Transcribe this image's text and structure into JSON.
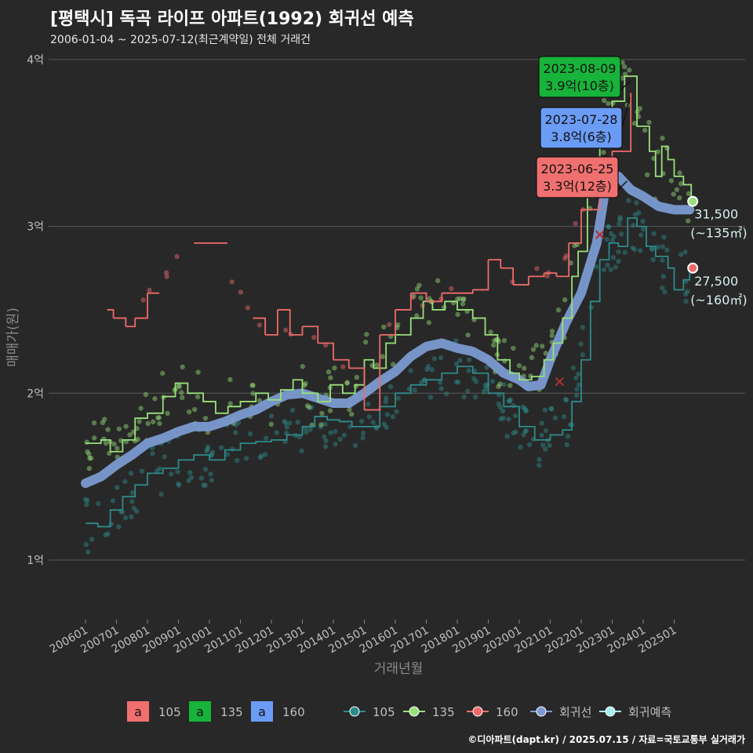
{
  "title": "[평택시] 독곡 라이프 아파트(1992) 회귀선 예측",
  "subtitle": "2006-01-04 ~ 2025-07-12(최근계약일) 전체 거래건",
  "credit": "©디아파트(dapt.kr) / 2025.07.15 / 자료=국토교통부 실거래가",
  "colors": {
    "s105": "#2e8b8b",
    "s135": "#98e07a",
    "s160": "#f06a6a",
    "reg": "#7a9ad0",
    "pred": "#a8f0f0",
    "box135": "#17b33a",
    "box160": "#6b9cf5",
    "box105": "#f07070"
  },
  "chart_data": {
    "type": "line",
    "xlabel": "거래년월",
    "ylabel": "매매가(원)",
    "ylim": [
      0.7,
      4.1
    ],
    "yticks": [
      {
        "v": 1,
        "label": "1억"
      },
      {
        "v": 2,
        "label": "2억"
      },
      {
        "v": 3,
        "label": "3억"
      },
      {
        "v": 4,
        "label": "4억"
      }
    ],
    "xticks": [
      "200601",
      "200701",
      "200801",
      "200901",
      "201001",
      "201101",
      "201201",
      "201301",
      "201401",
      "201501",
      "201601",
      "201701",
      "201801",
      "201901",
      "202001",
      "202101",
      "202201",
      "202301",
      "202401",
      "202501"
    ],
    "series": [
      {
        "name": "105",
        "kind": "trend",
        "points": [
          [
            2006.0,
            1.22
          ],
          [
            2006.4,
            1.2
          ],
          [
            2006.8,
            1.3
          ],
          [
            2007.2,
            1.38
          ],
          [
            2007.6,
            1.45
          ],
          [
            2008.0,
            1.52
          ],
          [
            2008.5,
            1.55
          ],
          [
            2009.0,
            1.6
          ],
          [
            2009.5,
            1.63
          ],
          [
            2010.0,
            1.6
          ],
          [
            2010.5,
            1.66
          ],
          [
            2011.0,
            1.7
          ],
          [
            2011.5,
            1.71
          ],
          [
            2012.0,
            1.72
          ],
          [
            2012.5,
            1.75
          ],
          [
            2013.0,
            1.8
          ],
          [
            2013.4,
            1.86
          ],
          [
            2013.8,
            1.84
          ],
          [
            2014.2,
            1.83
          ],
          [
            2014.6,
            1.8
          ],
          [
            2015.0,
            1.8
          ],
          [
            2015.5,
            1.92
          ],
          [
            2016.0,
            2.0
          ],
          [
            2016.5,
            2.05
          ],
          [
            2017.0,
            2.08
          ],
          [
            2017.5,
            2.12
          ],
          [
            2018.0,
            2.16
          ],
          [
            2018.5,
            2.12
          ],
          [
            2019.0,
            2.0
          ],
          [
            2019.5,
            1.92
          ],
          [
            2020.0,
            1.8
          ],
          [
            2020.5,
            1.72
          ],
          [
            2021.0,
            1.75
          ],
          [
            2021.4,
            1.78
          ],
          [
            2021.7,
            1.95
          ],
          [
            2022.0,
            2.2
          ],
          [
            2022.3,
            2.55
          ],
          [
            2022.6,
            2.8
          ],
          [
            2022.9,
            2.9
          ],
          [
            2023.2,
            2.88
          ],
          [
            2023.5,
            3.05
          ],
          [
            2023.8,
            3.0
          ],
          [
            2024.1,
            2.88
          ],
          [
            2024.4,
            2.82
          ],
          [
            2024.8,
            2.75
          ],
          [
            2025.0,
            2.62
          ],
          [
            2025.3,
            2.68
          ],
          [
            2025.5,
            2.72
          ]
        ]
      },
      {
        "name": "135",
        "kind": "trend",
        "points": [
          [
            2006.0,
            1.7
          ],
          [
            2006.5,
            1.72
          ],
          [
            2006.8,
            1.65
          ],
          [
            2007.2,
            1.72
          ],
          [
            2007.6,
            1.85
          ],
          [
            2008.0,
            1.88
          ],
          [
            2008.5,
            1.98
          ],
          [
            2008.9,
            2.06
          ],
          [
            2009.3,
            2.0
          ],
          [
            2009.8,
            1.95
          ],
          [
            2010.2,
            1.88
          ],
          [
            2010.6,
            1.92
          ],
          [
            2011.0,
            1.95
          ],
          [
            2011.5,
            2.0
          ],
          [
            2011.9,
            1.96
          ],
          [
            2012.3,
            2.02
          ],
          [
            2012.7,
            2.08
          ],
          [
            2013.0,
            2.0
          ],
          [
            2013.5,
            1.95
          ],
          [
            2013.9,
            2.05
          ],
          [
            2014.3,
            2.0
          ],
          [
            2014.7,
            2.05
          ],
          [
            2015.0,
            2.2
          ],
          [
            2015.3,
            2.15
          ],
          [
            2015.7,
            2.3
          ],
          [
            2016.0,
            2.35
          ],
          [
            2016.5,
            2.45
          ],
          [
            2016.9,
            2.55
          ],
          [
            2017.2,
            2.5
          ],
          [
            2017.6,
            2.55
          ],
          [
            2018.0,
            2.5
          ],
          [
            2018.5,
            2.45
          ],
          [
            2018.9,
            2.35
          ],
          [
            2019.3,
            2.2
          ],
          [
            2019.7,
            2.12
          ],
          [
            2020.0,
            2.08
          ],
          [
            2020.4,
            2.1
          ],
          [
            2020.8,
            2.2
          ],
          [
            2021.1,
            2.3
          ],
          [
            2021.4,
            2.45
          ],
          [
            2021.7,
            2.7
          ],
          [
            2021.9,
            2.85
          ],
          [
            2022.2,
            3.2
          ],
          [
            2022.6,
            3.55
          ],
          [
            2023.0,
            3.75
          ],
          [
            2023.4,
            3.9
          ],
          [
            2023.8,
            3.6
          ],
          [
            2024.2,
            3.45
          ],
          [
            2024.4,
            3.3
          ],
          [
            2024.6,
            3.48
          ],
          [
            2024.8,
            3.4
          ],
          [
            2025.0,
            3.3
          ],
          [
            2025.3,
            3.25
          ],
          [
            2025.55,
            3.15
          ]
        ]
      },
      {
        "name": "160",
        "kind": "trend",
        "points": [
          [
            2006.7,
            2.5
          ],
          [
            2006.9,
            2.45
          ],
          [
            2007.3,
            2.4
          ],
          [
            2007.6,
            2.45
          ],
          [
            2008.0,
            2.6
          ],
          [
            2009.5,
            2.9
          ],
          [
            2010.2,
            2.9
          ],
          [
            2011.4,
            2.45
          ],
          [
            2011.8,
            2.35
          ],
          [
            2012.2,
            2.5
          ],
          [
            2012.6,
            2.35
          ],
          [
            2013.0,
            2.4
          ],
          [
            2013.5,
            2.3
          ],
          [
            2014.0,
            2.2
          ],
          [
            2014.5,
            2.15
          ],
          [
            2015.0,
            1.9
          ],
          [
            2015.5,
            2.35
          ],
          [
            2016.0,
            2.5
          ],
          [
            2016.5,
            2.6
          ],
          [
            2017.0,
            2.55
          ],
          [
            2017.5,
            2.6
          ],
          [
            2018.0,
            2.6
          ],
          [
            2018.5,
            2.62
          ],
          [
            2019.0,
            2.8
          ],
          [
            2019.4,
            2.75
          ],
          [
            2019.8,
            2.65
          ],
          [
            2020.3,
            2.7
          ],
          [
            2020.8,
            2.72
          ],
          [
            2021.2,
            2.7
          ],
          [
            2021.6,
            2.9
          ],
          [
            2022.0,
            3.1
          ],
          [
            2022.6,
            3.3
          ],
          [
            2023.0,
            3.45
          ],
          [
            2023.6,
            3.8
          ]
        ]
      },
      {
        "name": "회귀선",
        "kind": "regression",
        "points": [
          [
            2006.0,
            1.46
          ],
          [
            2006.5,
            1.5
          ],
          [
            2007.0,
            1.57
          ],
          [
            2007.5,
            1.63
          ],
          [
            2008.0,
            1.7
          ],
          [
            2008.5,
            1.73
          ],
          [
            2009.0,
            1.77
          ],
          [
            2009.5,
            1.8
          ],
          [
            2010.0,
            1.8
          ],
          [
            2010.5,
            1.83
          ],
          [
            2011.0,
            1.87
          ],
          [
            2011.5,
            1.9
          ],
          [
            2012.0,
            1.95
          ],
          [
            2012.5,
            1.99
          ],
          [
            2013.0,
            2.0
          ],
          [
            2013.5,
            1.97
          ],
          [
            2014.0,
            1.94
          ],
          [
            2014.5,
            1.94
          ],
          [
            2015.0,
            2.0
          ],
          [
            2015.5,
            2.07
          ],
          [
            2016.0,
            2.13
          ],
          [
            2016.5,
            2.22
          ],
          [
            2017.0,
            2.28
          ],
          [
            2017.5,
            2.3
          ],
          [
            2018.0,
            2.27
          ],
          [
            2018.5,
            2.25
          ],
          [
            2019.0,
            2.2
          ],
          [
            2019.5,
            2.12
          ],
          [
            2020.0,
            2.08
          ],
          [
            2020.3,
            2.04
          ],
          [
            2020.7,
            2.05
          ],
          [
            2021.0,
            2.2
          ],
          [
            2021.5,
            2.42
          ],
          [
            2022.0,
            2.6
          ],
          [
            2022.5,
            2.9
          ],
          [
            2022.8,
            3.25
          ],
          [
            2023.2,
            3.3
          ],
          [
            2023.6,
            3.22
          ],
          [
            2024.0,
            3.18
          ],
          [
            2024.5,
            3.12
          ],
          [
            2025.0,
            3.1
          ],
          [
            2025.5,
            3.1
          ]
        ]
      }
    ],
    "endpoints": [
      {
        "series": "135",
        "x": 2025.6,
        "y": 3.15,
        "label1": "31,500",
        "label2": "(~135㎡)"
      },
      {
        "series": "160",
        "x": 2025.6,
        "y": 2.75,
        "label1": "27,500",
        "label2": "(~160㎡)"
      }
    ],
    "annotations": [
      {
        "series": "135",
        "date": "2023-08-09",
        "price": "3.9억(10층)",
        "x": 2023.6,
        "y": 3.9
      },
      {
        "series": "160",
        "date": "2023-07-28",
        "price": "3.8억(6층)",
        "x": 2023.57,
        "y": 3.8
      },
      {
        "series": "105",
        "date": "2023-06-25",
        "price": "3.3억(12층)",
        "x": 2023.48,
        "y": 3.3
      }
    ],
    "legend_fill": [
      {
        "glyph": "a",
        "label": "105"
      },
      {
        "glyph": "a",
        "label": "135"
      },
      {
        "glyph": "a",
        "label": "160"
      }
    ],
    "legend_line": [
      {
        "label": "105"
      },
      {
        "label": "135"
      },
      {
        "label": "160"
      },
      {
        "label": "회귀선"
      },
      {
        "label": "회귀예측"
      }
    ]
  }
}
